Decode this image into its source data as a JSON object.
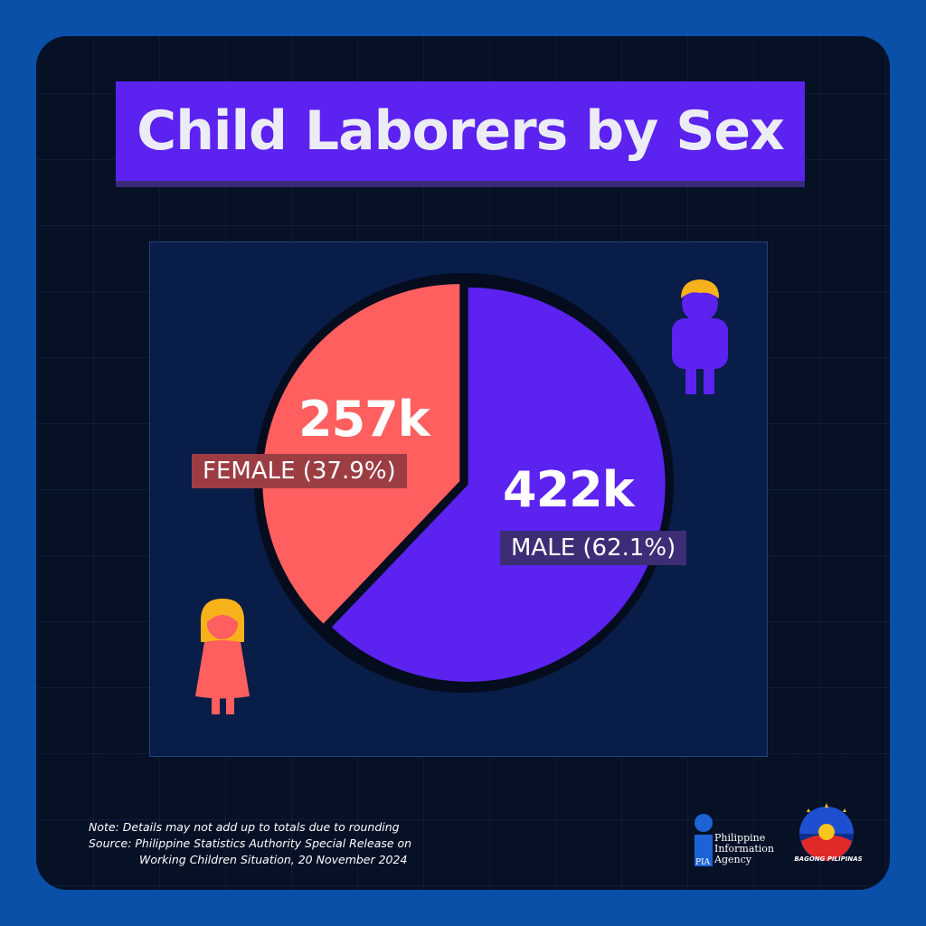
{
  "title": "Child Laborers by Sex",
  "chart_data": {
    "type": "pie",
    "title": "Child Laborers by Sex",
    "slices": [
      {
        "label": "FEMALE",
        "value": 257,
        "value_label": "257k",
        "percent": 37.9,
        "percent_label": "(37.9%)",
        "color": "#ff5f5f"
      },
      {
        "label": "MALE",
        "value": 422,
        "value_label": "422k",
        "percent": 62.1,
        "percent_label": "(62.1%)",
        "color": "#5b22f0"
      }
    ]
  },
  "labels": {
    "female_value": "257k",
    "female_tag": "FEMALE (37.9%)",
    "male_value": "422k",
    "male_tag": "MALE (62.1%)"
  },
  "icons": {
    "female": "girl-icon",
    "male": "boy-icon"
  },
  "footer": {
    "note": "Note: Details may not add up to totals due to rounding",
    "source_line1": "Source: Philippine Statistics Authority Special Release on",
    "source_line2": "Working Children Situation, 20 November 2024"
  },
  "logos": {
    "pia_abbr": "PIA",
    "pia_line1": "Philippine",
    "pia_line2": "Information",
    "pia_line3": "Agency",
    "bp_text": "BAGONG PILIPINAS"
  },
  "colors": {
    "background": "#0a4fa8",
    "card": "#061126",
    "panel": "#081d47",
    "title_bar": "#5b22f0",
    "female": "#ff5f5f",
    "male": "#5b22f0"
  }
}
